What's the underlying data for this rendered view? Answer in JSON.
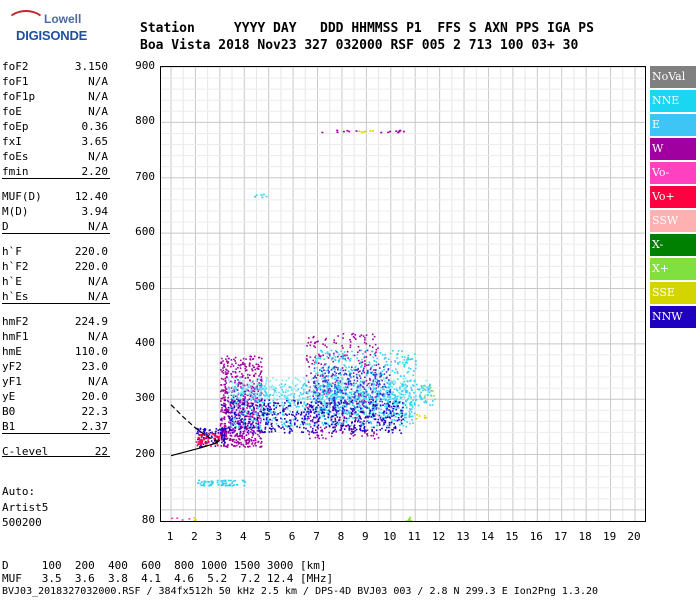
{
  "logo": {
    "line1": "Lowell",
    "line2": "DIGISONDE"
  },
  "header": {
    "line1": "Station     YYYY DAY   DDD HHMMSS P1  FFS S AXN PPS IGA PS",
    "line2": "Boa Vista 2018 Nov23 327 032000 RSF 005 2 713 100 03+ 30"
  },
  "params": [
    {
      "name": "foF2",
      "value": "3.150"
    },
    {
      "name": "foF1",
      "value": "N/A"
    },
    {
      "name": "foF1p",
      "value": "N/A"
    },
    {
      "name": "foE",
      "value": "N/A"
    },
    {
      "name": "foEp",
      "value": "0.36"
    },
    {
      "name": "fxI",
      "value": "3.65"
    },
    {
      "name": "foEs",
      "value": "N/A"
    },
    {
      "name": "fmin",
      "value": "2.20"
    },
    {
      "name": "MUF(D)",
      "value": "12.40"
    },
    {
      "name": "M(D)",
      "value": "3.94"
    },
    {
      "name": "D",
      "value": "N/A"
    },
    {
      "name": "h`F",
      "value": "220.0"
    },
    {
      "name": "h`F2",
      "value": "220.0"
    },
    {
      "name": "h`E",
      "value": "N/A"
    },
    {
      "name": "h`Es",
      "value": "N/A"
    },
    {
      "name": "hmF2",
      "value": "224.9"
    },
    {
      "name": "hmF1",
      "value": "N/A"
    },
    {
      "name": "hmE",
      "value": "110.0"
    },
    {
      "name": "yF2",
      "value": "23.0"
    },
    {
      "name": "yF1",
      "value": "N/A"
    },
    {
      "name": "yE",
      "value": "20.0"
    },
    {
      "name": "B0",
      "value": "22.3"
    },
    {
      "name": "B1",
      "value": "2.37"
    },
    {
      "name": "C-level",
      "value": "22"
    }
  ],
  "auto": {
    "l1": "Auto:",
    "l2": "Artist5",
    "l3": "500200"
  },
  "legend": [
    {
      "label": "NoVal",
      "color": "#808080"
    },
    {
      "label": "NNE",
      "color": "#19d7f0"
    },
    {
      "label": "E",
      "color": "#3ec4f5"
    },
    {
      "label": "W",
      "color": "#a000a0"
    },
    {
      "label": "Vo-",
      "color": "#ff40c0"
    },
    {
      "label": "Vo+",
      "color": "#ff0040"
    },
    {
      "label": "SSW",
      "color": "#ffb0b0"
    },
    {
      "label": "X-",
      "color": "#008000"
    },
    {
      "label": "X+",
      "color": "#80e040"
    },
    {
      "label": "SSE",
      "color": "#d4d400"
    },
    {
      "label": "NNW",
      "color": "#2000c0"
    }
  ],
  "chart_data": {
    "type": "scatter",
    "xlim": [
      1,
      20
    ],
    "ylim": [
      80,
      900
    ],
    "x_ticks": [
      "1",
      "2",
      "3",
      "4",
      "5",
      "6",
      "7",
      "8",
      "9",
      "10",
      "11",
      "12",
      "13",
      "14",
      "15",
      "16",
      "17",
      "18",
      "19",
      "20"
    ],
    "y_ticks": [
      "80",
      "200",
      "300",
      "400",
      "500",
      "600",
      "700",
      "800",
      "900"
    ],
    "trace": {
      "x": [
        1.0,
        1.6,
        2.2,
        2.8,
        3.0
      ],
      "y": [
        198,
        205,
        212,
        220,
        226
      ]
    },
    "trace2": {
      "x": [
        1.0,
        1.5,
        2.0,
        2.5,
        3.0
      ],
      "y": [
        290,
        268,
        248,
        232,
        222
      ]
    }
  },
  "footer": {
    "l1": "D     100  200  400  600  800 1000 1500 3000 [km]",
    "l2": "MUF   3.5  3.6  3.8  4.1  4.6  5.2  7.2 12.4 [MHz]",
    "l3": "BVJ03_2018327032000.RSF / 384fx512h 50 kHz 2.5 km / DPS-4D BVJ03 003 / 2.8 N 299.3 E Ion2Png 1.3.20"
  }
}
